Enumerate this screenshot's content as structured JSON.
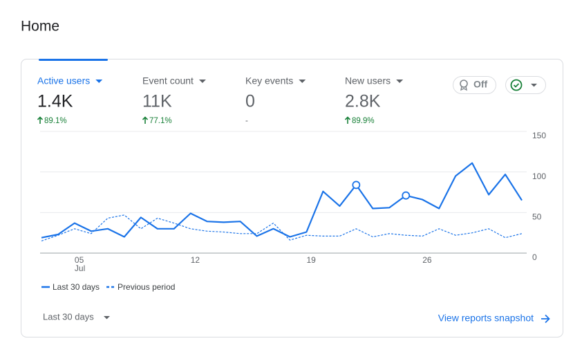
{
  "page": {
    "title": "Home"
  },
  "metrics": [
    {
      "label": "Active users",
      "value": "1.4K",
      "change": "89.1%",
      "selected": true
    },
    {
      "label": "Event count",
      "value": "11K",
      "change": "77.1%",
      "selected": false
    },
    {
      "label": "Key events",
      "value": "0",
      "change": "-",
      "selected": false
    },
    {
      "label": "New users",
      "value": "2.8K",
      "change": "89.9%",
      "selected": false
    }
  ],
  "toggle": {
    "label": "Off"
  },
  "date_range": "Last 30 days",
  "link": "View reports snapshot",
  "chart_data": {
    "type": "line",
    "categories": [
      null,
      null,
      "05",
      null,
      null,
      null,
      null,
      null,
      null,
      "12",
      null,
      null,
      null,
      null,
      null,
      null,
      "19",
      null,
      null,
      null,
      null,
      null,
      null,
      "26",
      null,
      null,
      null,
      null,
      null,
      null
    ],
    "month_labels": [
      null,
      null,
      "Jul",
      null,
      null,
      null,
      null,
      null,
      null,
      null,
      null,
      null,
      null,
      null,
      null,
      null,
      null,
      null,
      null,
      null,
      null,
      null,
      null,
      null,
      null,
      null,
      null,
      null,
      null,
      null
    ],
    "series": [
      {
        "name": "Last 30 days",
        "color": "#1a73e8",
        "style": "solid",
        "values": [
          19,
          23,
          37,
          27,
          30,
          20,
          44,
          30,
          30,
          49,
          39,
          38,
          39,
          21,
          30,
          20,
          26,
          76,
          58,
          84,
          55,
          56,
          71,
          66,
          55,
          95,
          111,
          72,
          97,
          65
        ]
      },
      {
        "name": "Previous period",
        "color": "#1a73e8",
        "style": "dashed",
        "values": [
          15,
          22,
          30,
          24,
          43,
          47,
          30,
          43,
          37,
          30,
          27,
          26,
          24,
          24,
          37,
          16,
          22,
          21,
          21,
          30,
          20,
          24,
          22,
          21,
          30,
          22,
          25,
          30,
          19,
          24
        ]
      }
    ],
    "highlight_points": [
      19,
      22
    ],
    "ylim": [
      0,
      150
    ],
    "yticks": [
      0,
      50,
      100,
      150
    ],
    "grid": true
  }
}
